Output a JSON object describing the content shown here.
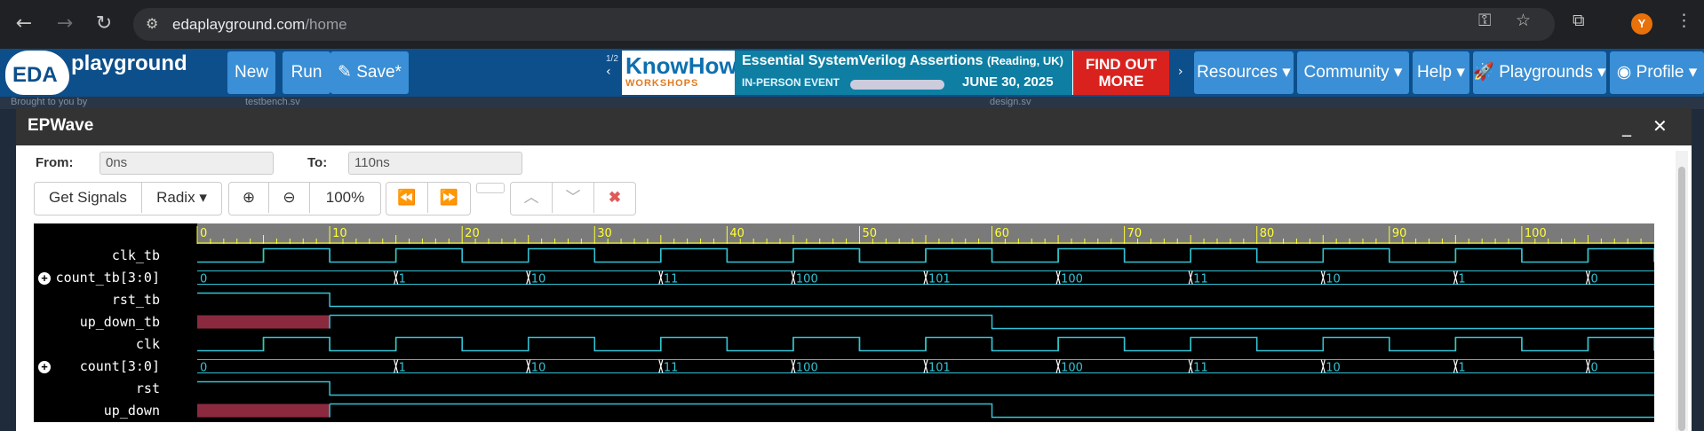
{
  "browser": {
    "url_domain": "edaplayground.com",
    "url_path": "/home",
    "avatar_letter": "Y"
  },
  "navbar": {
    "logo_eda": "EDA",
    "logo_playground": "playground",
    "new_label": "New",
    "run_label": "Run",
    "save_label": "Save*",
    "pager": "1/2",
    "banner_know": "KnowHow",
    "banner_workshops": "WORKSHOPS",
    "banner_title": "Essential SystemVerilog Assertions",
    "banner_location": "(Reading, UK)",
    "banner_event": "IN-PERSON EVENT",
    "banner_date": "JUNE 30, 2025",
    "banner_find": "FIND OUT",
    "banner_more": "MORE",
    "resources_label": "Resources",
    "community_label": "Community",
    "help_label": "Help",
    "playgrounds_label": "Playgrounds",
    "profile_label": "Profile"
  },
  "background_tabs": {
    "brought": "Brought to you by",
    "testbench": "testbench.sv",
    "design": "design.sv"
  },
  "epwave": {
    "title": "EPWave",
    "from_label": "From:",
    "from_value": "0ns",
    "to_label": "To:",
    "to_value": "110ns",
    "get_signals": "Get Signals",
    "radix": "Radix",
    "zoom_level": "100%"
  },
  "timeline": {
    "start": 0,
    "end": 110,
    "ticks": [
      "0",
      "10",
      "20",
      "30",
      "40",
      "50",
      "60",
      "70",
      "80",
      "90",
      "100"
    ]
  },
  "signals": [
    {
      "name": "clk_tb",
      "type": "clock"
    },
    {
      "name": "count_tb[3:0]",
      "type": "bus",
      "expandable": true
    },
    {
      "name": "rst_tb",
      "type": "step"
    },
    {
      "name": "up_down_tb",
      "type": "updown"
    },
    {
      "name": "clk",
      "type": "clock"
    },
    {
      "name": "count[3:0]",
      "type": "bus",
      "expandable": true
    },
    {
      "name": "rst",
      "type": "step"
    },
    {
      "name": "up_down",
      "type": "updown"
    }
  ],
  "bus_values": [
    {
      "t": 0,
      "v": "0"
    },
    {
      "t": 15,
      "v": "1"
    },
    {
      "t": 25,
      "v": "10"
    },
    {
      "t": 35,
      "v": "11"
    },
    {
      "t": 45,
      "v": "100"
    },
    {
      "t": 55,
      "v": "101"
    },
    {
      "t": 65,
      "v": "100"
    },
    {
      "t": 75,
      "v": "11"
    },
    {
      "t": 85,
      "v": "10"
    },
    {
      "t": 95,
      "v": "1"
    },
    {
      "t": 105,
      "v": "0"
    }
  ],
  "colors": {
    "navbar": "#0d4f8b",
    "button": "#3a8fd6",
    "wave_line": "#33c3d6",
    "clock_edge": "#33ff66",
    "unknown_fill": "#8b2a3f"
  }
}
